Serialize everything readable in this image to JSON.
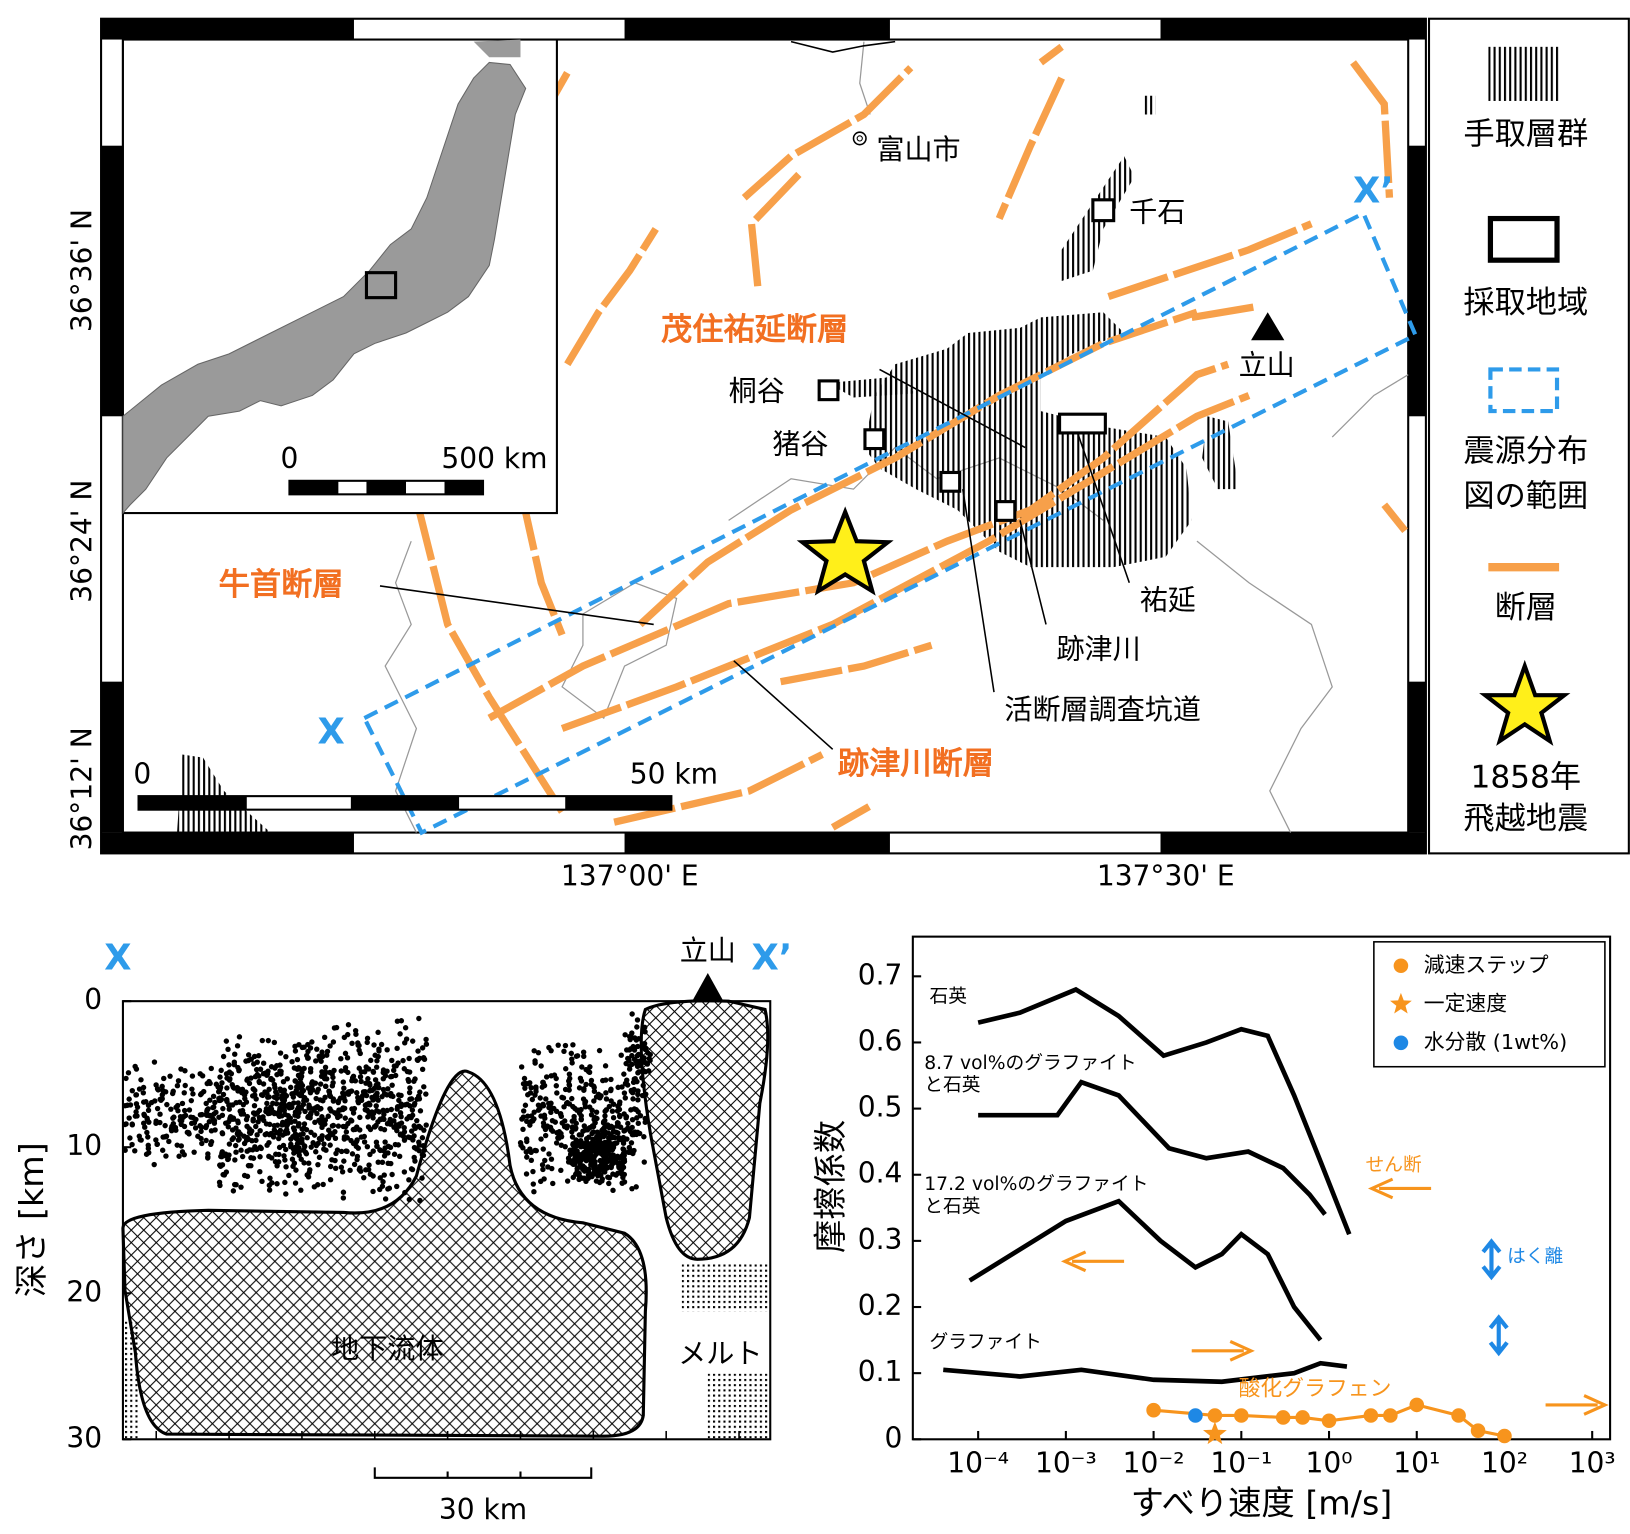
{
  "map": {
    "inset": {
      "scale_labels": [
        "0",
        "500 km"
      ]
    },
    "places": {
      "toyama": "富山市",
      "senseki": "千石",
      "tateyama": "立山",
      "kiridani": "桐谷",
      "inotani": "猪谷",
      "sukenobu": "祐延",
      "atotsugawa": "跡津川",
      "tunnel": "活断層調査坑道"
    },
    "faults": {
      "mozumi": "茂住祐延断層",
      "ushikubi": "牛首断層",
      "atotsugawa": "跡津川断層"
    },
    "section_ends": [
      "X",
      "X’"
    ],
    "scale_labels": [
      "0",
      "50 km"
    ],
    "latitudes": [
      "36°36' N",
      "36°24' N",
      "36°12' N"
    ],
    "longitudes": [
      "137°00' E",
      "137°30' E"
    ],
    "legend": [
      [
        "手取層群"
      ],
      [
        "採取地域"
      ],
      [
        "震源分布",
        "図の範囲"
      ],
      [
        "断層"
      ],
      [
        "1858年",
        "飛越地震"
      ]
    ]
  },
  "cross_section": {
    "ends": [
      "X",
      "X’"
    ],
    "peak": "立山",
    "ylabel": "深さ [km]",
    "ylim": [
      0,
      30
    ],
    "yticks": [
      0,
      10,
      20,
      30
    ],
    "regions": [
      "地下流体",
      "メルト"
    ],
    "scale_label": "30 km"
  },
  "chart_data": {
    "type": "line",
    "xlabel": "すべり速度 [m/s]",
    "ylabel": "摩擦係数",
    "xscale": "log",
    "xlim": [
      1.8e-05,
      1600
    ],
    "ylim": [
      0,
      0.76
    ],
    "xticks": [
      {
        "value": 0.0001,
        "label": "10⁻⁴"
      },
      {
        "value": 0.001,
        "label": "10⁻³"
      },
      {
        "value": 0.01,
        "label": "10⁻²"
      },
      {
        "value": 0.1,
        "label": "10⁻¹"
      },
      {
        "value": 1,
        "label": "10⁰"
      },
      {
        "value": 10,
        "label": "10¹"
      },
      {
        "value": 100,
        "label": "10²"
      },
      {
        "value": 1000,
        "label": "10³"
      }
    ],
    "yticks": [
      0,
      0.1,
      0.2,
      0.3,
      0.4,
      0.5,
      0.6,
      0.7
    ],
    "series": [
      {
        "label": [
          "石英"
        ],
        "color": "#000000",
        "marker": "none",
        "x": [
          0.0001,
          0.0003,
          0.0013,
          0.004,
          0.013,
          0.04,
          0.1,
          0.2,
          0.4,
          0.8,
          1.7
        ],
        "values": [
          0.63,
          0.645,
          0.68,
          0.64,
          0.58,
          0.6,
          0.62,
          0.61,
          0.52,
          0.42,
          0.31
        ]
      },
      {
        "label": [
          "8.7 vol%のグラファイト",
          "と石英"
        ],
        "color": "#000000",
        "marker": "none",
        "x": [
          0.0001,
          0.0008,
          0.0015,
          0.004,
          0.015,
          0.04,
          0.12,
          0.3,
          0.6,
          0.9
        ],
        "values": [
          0.49,
          0.49,
          0.54,
          0.52,
          0.44,
          0.425,
          0.435,
          0.41,
          0.37,
          0.34
        ]
      },
      {
        "label": [
          "17.2 vol%のグラファイト",
          "と石英"
        ],
        "color": "#000000",
        "marker": "none",
        "x": [
          8e-05,
          0.001,
          0.004,
          0.012,
          0.03,
          0.06,
          0.1,
          0.2,
          0.4,
          0.8
        ],
        "values": [
          0.24,
          0.33,
          0.36,
          0.3,
          0.26,
          0.28,
          0.31,
          0.28,
          0.2,
          0.15
        ]
      },
      {
        "label": [
          "グラファイト"
        ],
        "color": "#000000",
        "marker": "none",
        "x": [
          4e-05,
          0.0003,
          0.0015,
          0.01,
          0.06,
          0.4,
          0.8,
          1.6
        ],
        "values": [
          0.105,
          0.095,
          0.105,
          0.09,
          0.087,
          0.1,
          0.115,
          0.11
        ]
      },
      {
        "name": "減速ステップ",
        "label": [
          "酸化グラフェン"
        ],
        "color": "#f7941d",
        "marker": "circle",
        "x": [
          0.01,
          0.05,
          0.1,
          0.3,
          0.5,
          1,
          3,
          5,
          10,
          30,
          50,
          100
        ],
        "values": [
          0.044,
          0.036,
          0.036,
          0.033,
          0.033,
          0.028,
          0.036,
          0.036,
          0.052,
          0.036,
          0.013,
          0.005
        ]
      },
      {
        "name": "一定速度",
        "color": "#f7941d",
        "marker": "star",
        "x": [
          0.05
        ],
        "values": [
          0.008
        ]
      },
      {
        "name": "水分散 (1wt%)",
        "color": "#1e88e5",
        "marker": "circle",
        "x": [
          0.03
        ],
        "values": [
          0.036
        ]
      }
    ],
    "annotations": [
      "せん断",
      "はく離"
    ]
  }
}
